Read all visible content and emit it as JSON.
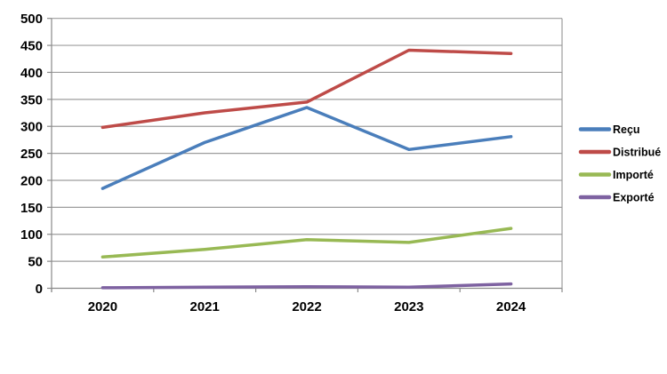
{
  "chart_data": {
    "type": "line",
    "title": "",
    "xlabel": "",
    "ylabel": "",
    "categories": [
      "2020",
      "2021",
      "2022",
      "2023",
      "2024"
    ],
    "series": [
      {
        "name": "Reçu",
        "color": "#4A7EBB",
        "values": [
          185,
          270,
          335,
          257,
          281
        ]
      },
      {
        "name": "Distribué",
        "color": "#BE4B48",
        "values": [
          298,
          325,
          345,
          441,
          435
        ]
      },
      {
        "name": "Importé",
        "color": "#98B954",
        "values": [
          58,
          72,
          90,
          85,
          111
        ]
      },
      {
        "name": "Exporté",
        "color": "#7E62A1",
        "values": [
          1,
          2,
          3,
          2,
          8
        ]
      }
    ],
    "ylim": [
      0,
      500
    ],
    "yticks": [
      0,
      50,
      100,
      150,
      200,
      250,
      300,
      350,
      400,
      450,
      500
    ],
    "grid": true,
    "legend_position": "right"
  },
  "colors": {
    "background": "#FFFFFF",
    "gridline": "#9D9D9D",
    "axis": "#8A8A8A",
    "text": "#000000"
  }
}
